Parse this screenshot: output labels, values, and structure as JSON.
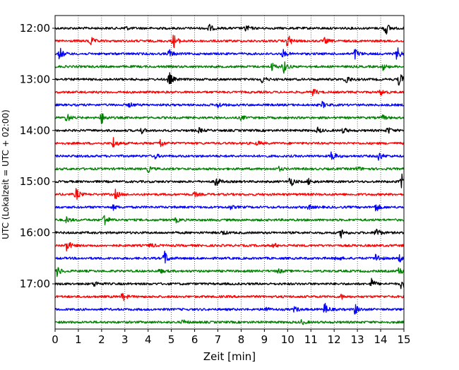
{
  "chart_data": {
    "type": "line",
    "title": "",
    "xlabel": "Zeit  [min]",
    "ylabel": "UTC (Lokalzeit = UTC + 02:00)",
    "xlim": [
      0,
      15
    ],
    "xticks": [
      "0",
      "1",
      "2",
      "3",
      "4",
      "5",
      "6",
      "7",
      "8",
      "9",
      "10",
      "11",
      "12",
      "13",
      "14",
      "15"
    ],
    "yticks": [
      {
        "label": "12:00",
        "row": 0
      },
      {
        "label": "13:00",
        "row": 4
      },
      {
        "label": "14:00",
        "row": 8
      },
      {
        "label": "15:00",
        "row": 12
      },
      {
        "label": "16:00",
        "row": 16
      },
      {
        "label": "17:00",
        "row": 20
      }
    ],
    "grid": "vertical dotted lines at each minute",
    "row_minutes": 15,
    "trace_colors": [
      "#000000",
      "#ff0000",
      "#0000ff",
      "#008000"
    ],
    "traces": [
      {
        "start": "12:00",
        "events": [
          [
            3.0,
            0.3
          ],
          [
            6.6,
            0.6
          ],
          [
            8.2,
            0.5
          ],
          [
            14.2,
            1.0
          ]
        ]
      },
      {
        "start": "12:15",
        "events": [
          [
            1.5,
            0.7
          ],
          [
            5.1,
            1.0
          ],
          [
            10.0,
            1.0
          ],
          [
            11.6,
            0.4
          ]
        ]
      },
      {
        "start": "12:30",
        "events": [
          [
            0.2,
            0.8
          ],
          [
            4.9,
            0.6
          ],
          [
            9.8,
            0.5
          ],
          [
            12.9,
            0.7
          ],
          [
            14.7,
            0.9
          ]
        ]
      },
      {
        "start": "12:45",
        "events": [
          [
            9.3,
            0.6
          ],
          [
            9.8,
            1.0
          ],
          [
            14.1,
            0.4
          ]
        ]
      },
      {
        "start": "13:00",
        "events": [
          [
            4.9,
            1.0
          ],
          [
            8.9,
            0.5
          ],
          [
            12.5,
            0.7
          ],
          [
            14.8,
            1.0
          ]
        ]
      },
      {
        "start": "13:15",
        "events": [
          [
            11.1,
            0.5
          ],
          [
            14.0,
            0.4
          ]
        ]
      },
      {
        "start": "13:30",
        "events": [
          [
            3.2,
            0.3
          ],
          [
            7.0,
            0.4
          ],
          [
            11.5,
            0.4
          ]
        ]
      },
      {
        "start": "13:45",
        "events": [
          [
            0.5,
            0.6
          ],
          [
            2.0,
            0.8
          ],
          [
            8.0,
            0.3
          ],
          [
            14.1,
            0.3
          ]
        ]
      },
      {
        "start": "14:00",
        "events": [
          [
            3.7,
            0.4
          ],
          [
            6.2,
            0.3
          ],
          [
            11.3,
            0.4
          ],
          [
            12.4,
            0.4
          ],
          [
            14.3,
            0.5
          ]
        ]
      },
      {
        "start": "14:15",
        "events": [
          [
            2.5,
            0.8
          ],
          [
            4.5,
            0.7
          ],
          [
            8.7,
            0.3
          ]
        ]
      },
      {
        "start": "14:30",
        "events": [
          [
            4.3,
            0.3
          ],
          [
            11.9,
            0.8
          ],
          [
            13.9,
            0.7
          ]
        ]
      },
      {
        "start": "14:45",
        "events": [
          [
            4.0,
            0.4
          ],
          [
            9.6,
            0.3
          ],
          [
            13.0,
            0.3
          ]
        ]
      },
      {
        "start": "15:00",
        "events": [
          [
            6.9,
            0.8
          ],
          [
            10.1,
            0.8
          ],
          [
            10.9,
            0.4
          ],
          [
            14.9,
            1.0
          ]
        ]
      },
      {
        "start": "15:15",
        "events": [
          [
            0.9,
            0.8
          ],
          [
            2.6,
            0.6
          ],
          [
            6.0,
            0.3
          ]
        ]
      },
      {
        "start": "15:30",
        "events": [
          [
            2.5,
            0.3
          ],
          [
            7.5,
            0.3
          ],
          [
            10.9,
            0.3
          ],
          [
            13.8,
            0.6
          ]
        ]
      },
      {
        "start": "15:45",
        "events": [
          [
            0.5,
            0.4
          ],
          [
            2.1,
            1.0
          ],
          [
            5.2,
            0.3
          ]
        ]
      },
      {
        "start": "16:00",
        "events": [
          [
            7.2,
            0.3
          ],
          [
            12.3,
            0.6
          ],
          [
            13.8,
            0.8
          ]
        ]
      },
      {
        "start": "16:15",
        "events": [
          [
            0.5,
            0.9
          ],
          [
            4.1,
            0.3
          ],
          [
            9.4,
            0.3
          ]
        ]
      },
      {
        "start": "16:30",
        "events": [
          [
            4.7,
            1.0
          ],
          [
            12.1,
            0.4
          ],
          [
            13.8,
            0.7
          ],
          [
            14.8,
            0.5
          ]
        ]
      },
      {
        "start": "16:45",
        "events": [
          [
            0.1,
            0.7
          ],
          [
            4.5,
            0.3
          ],
          [
            9.6,
            0.3
          ],
          [
            14.8,
            0.6
          ]
        ]
      },
      {
        "start": "17:00",
        "events": [
          [
            1.7,
            0.4
          ],
          [
            13.6,
            0.7
          ],
          [
            14.9,
            0.8
          ]
        ]
      },
      {
        "start": "17:15",
        "events": [
          [
            2.9,
            0.6
          ],
          [
            12.3,
            0.3
          ]
        ]
      },
      {
        "start": "17:30",
        "events": [
          [
            9.0,
            0.5
          ],
          [
            10.3,
            0.4
          ],
          [
            11.6,
            0.8
          ],
          [
            12.9,
            0.7
          ]
        ]
      },
      {
        "start": "17:45",
        "events": [
          [
            5.5,
            0.3
          ],
          [
            10.6,
            0.3
          ]
        ]
      }
    ]
  }
}
